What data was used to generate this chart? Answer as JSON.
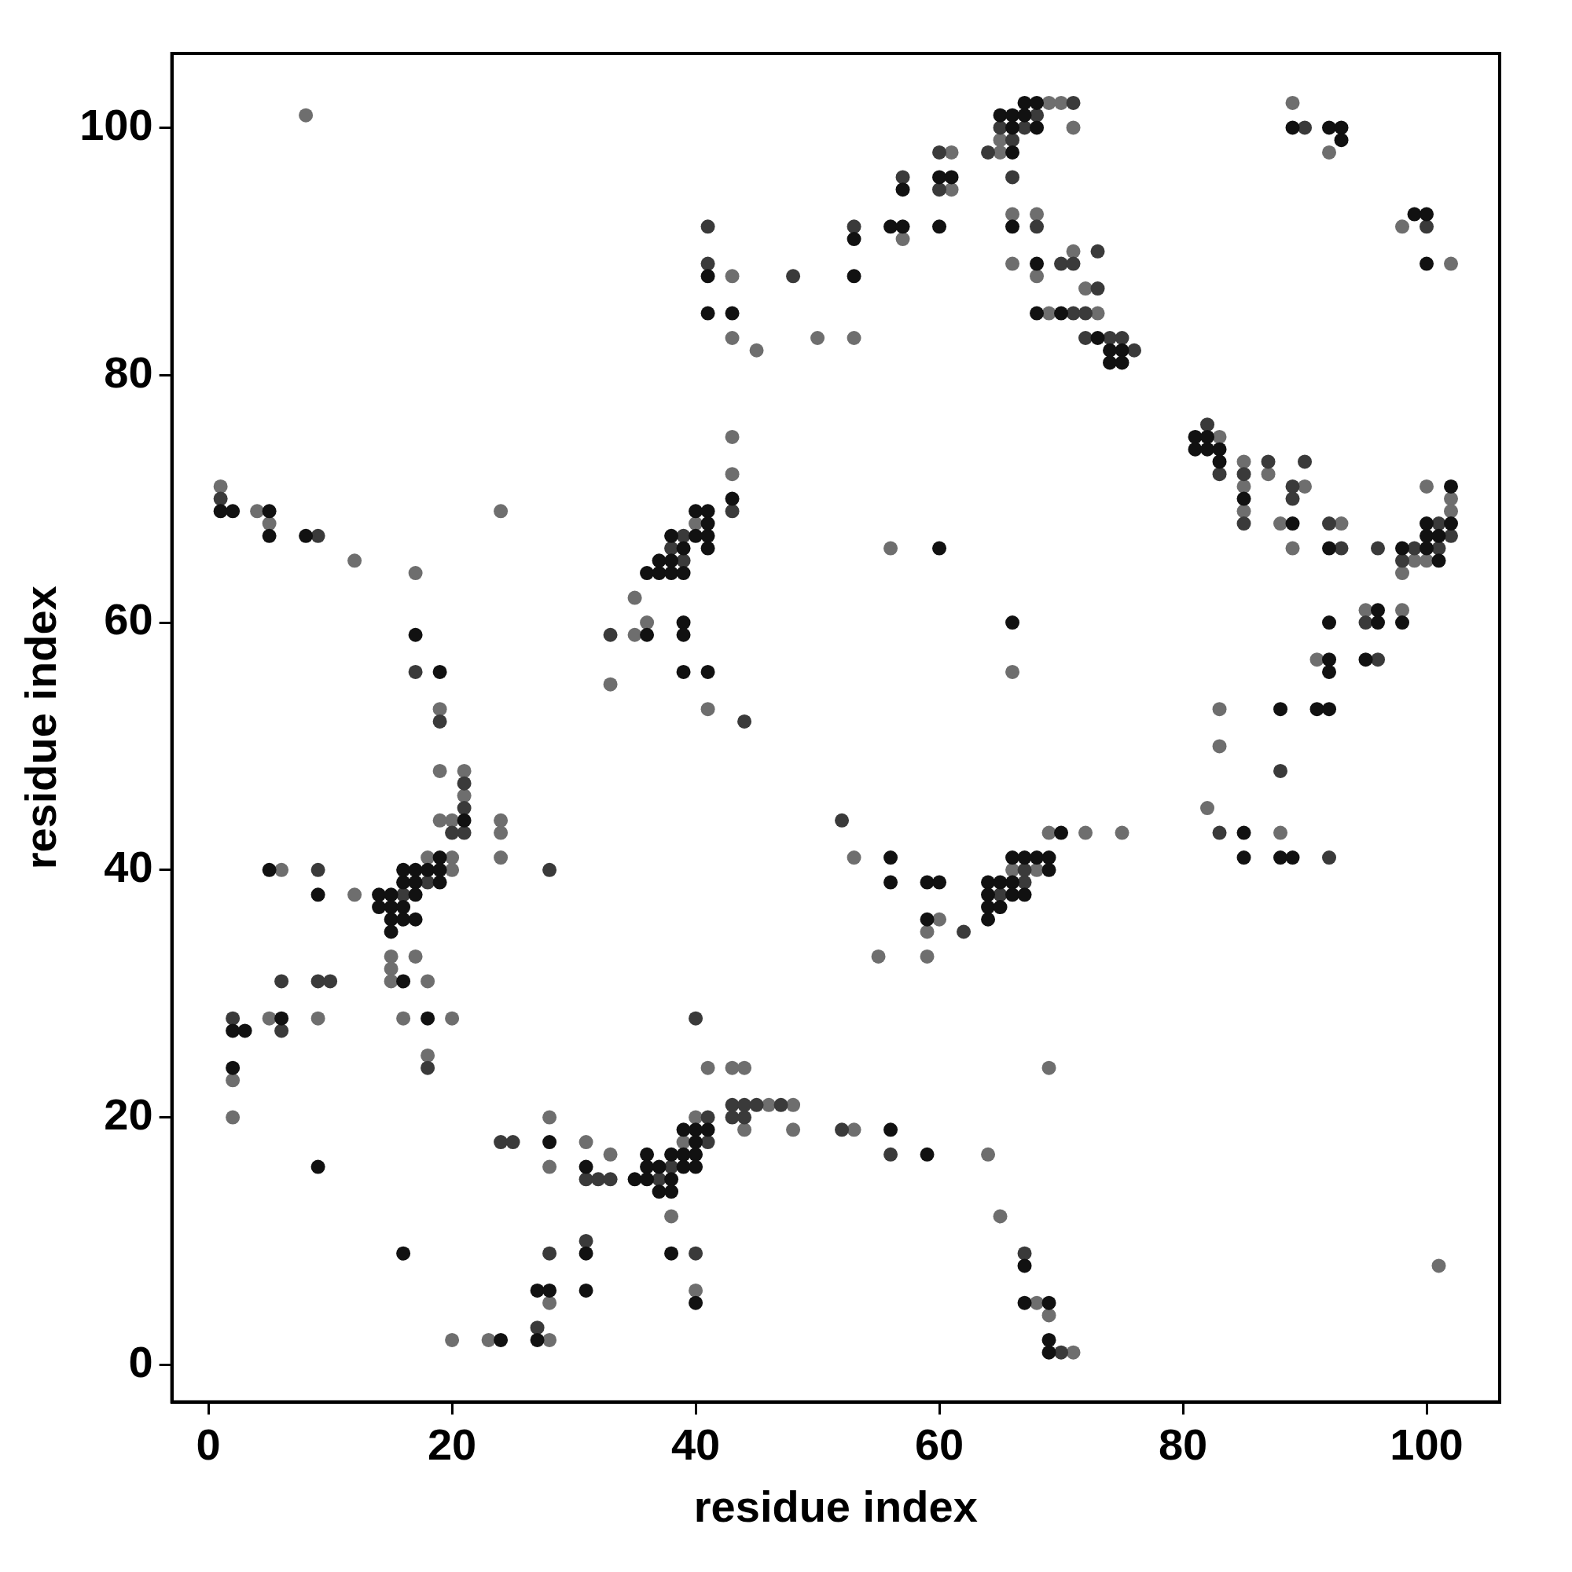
{
  "chart_data": {
    "type": "scatter",
    "xlabel": "residue index",
    "ylabel": "residue index",
    "xlim": [
      -3,
      106
    ],
    "ylim": [
      -3,
      106
    ],
    "xticks": [
      0,
      20,
      40,
      60,
      80,
      100
    ],
    "yticks": [
      0,
      20,
      40,
      60,
      80,
      100
    ],
    "grid": false,
    "legend": false,
    "marker": "circle",
    "series": [
      {
        "color": "#111111",
        "x": [
          1,
          2,
          5,
          5,
          8,
          17,
          19,
          21,
          14,
          14,
          15,
          15,
          15,
          15,
          16,
          16,
          16,
          16,
          17,
          17,
          17,
          17,
          18,
          19,
          19,
          19,
          5,
          9,
          16,
          18,
          6,
          2,
          3,
          2,
          9,
          16,
          24,
          27,
          27,
          28,
          31,
          31,
          28,
          31,
          35,
          36,
          36,
          36,
          37,
          37,
          38,
          38,
          38,
          39,
          39,
          39,
          40,
          40,
          40,
          40,
          41,
          38,
          40,
          56,
          59,
          67,
          67,
          69,
          69,
          69,
          36,
          36,
          37,
          37,
          38,
          38,
          38,
          39,
          39,
          40,
          40,
          41,
          41,
          41,
          41,
          43,
          39,
          39,
          39,
          41,
          41,
          41,
          43,
          53,
          53,
          56,
          57,
          57,
          60,
          60,
          61,
          65,
          66,
          66,
          66,
          67,
          67,
          68,
          68,
          66,
          68,
          68,
          70,
          73,
          74,
          74,
          75,
          75,
          89,
          92,
          93,
          93,
          99,
          100,
          100,
          81,
          81,
          82,
          82,
          83,
          83,
          85,
          89,
          92,
          98,
          100,
          100,
          100,
          101,
          101,
          102,
          102,
          92,
          92,
          92,
          91,
          92,
          95,
          96,
          96,
          98,
          88,
          88,
          89,
          85,
          85,
          56,
          56,
          59,
          60,
          59,
          64,
          64,
          64,
          64,
          65,
          65,
          66,
          66,
          66,
          67,
          67,
          68,
          69,
          69,
          70,
          60,
          66
        ],
        "values": [
          69,
          69,
          69,
          67,
          67,
          59,
          56,
          44,
          38,
          37,
          38,
          37,
          36,
          35,
          39,
          40,
          37,
          36,
          40,
          39,
          38,
          36,
          40,
          41,
          40,
          39,
          40,
          38,
          31,
          28,
          28,
          27,
          27,
          24,
          16,
          9,
          2,
          2,
          6,
          6,
          9,
          6,
          18,
          16,
          15,
          17,
          16,
          15,
          16,
          14,
          17,
          15,
          14,
          19,
          17,
          16,
          19,
          18,
          17,
          16,
          19,
          9,
          5,
          19,
          17,
          8,
          5,
          5,
          2,
          1,
          59,
          64,
          64,
          65,
          64,
          65,
          67,
          64,
          66,
          67,
          69,
          69,
          68,
          67,
          66,
          70,
          60,
          59,
          56,
          56,
          88,
          85,
          85,
          91,
          88,
          92,
          92,
          95,
          92,
          96,
          96,
          101,
          101,
          100,
          98,
          102,
          101,
          102,
          100,
          92,
          89,
          85,
          85,
          83,
          82,
          81,
          82,
          81,
          100,
          100,
          100,
          99,
          93,
          93,
          89,
          75,
          74,
          75,
          74,
          74,
          73,
          70,
          68,
          66,
          66,
          68,
          67,
          66,
          67,
          65,
          71,
          68,
          60,
          57,
          56,
          53,
          53,
          57,
          61,
          60,
          60,
          53,
          41,
          41,
          43,
          41,
          41,
          39,
          39,
          39,
          36,
          39,
          38,
          37,
          36,
          39,
          37,
          41,
          39,
          38,
          41,
          38,
          41,
          41,
          40,
          43,
          66,
          60
        ]
      },
      {
        "color": "#3a3a3a",
        "x": [
          1,
          9,
          17,
          19,
          21,
          21,
          21,
          20,
          28,
          16,
          18,
          9,
          18,
          6,
          9,
          10,
          6,
          2,
          27,
          28,
          31,
          24,
          25,
          31,
          32,
          33,
          37,
          38,
          41,
          41,
          40,
          40,
          43,
          44,
          45,
          47,
          43,
          44,
          52,
          56,
          67,
          70,
          33,
          38,
          39,
          39,
          43,
          44,
          41,
          41,
          48,
          53,
          57,
          60,
          60,
          64,
          65,
          66,
          67,
          68,
          71,
          66,
          68,
          70,
          71,
          71,
          72,
          72,
          73,
          73,
          74,
          75,
          76,
          90,
          100,
          82,
          83,
          85,
          85,
          87,
          89,
          89,
          90,
          92,
          93,
          96,
          98,
          99,
          101,
          101,
          102,
          95,
          96,
          88,
          92,
          83,
          52,
          62,
          65,
          67,
          67
        ],
        "values": [
          70,
          67,
          56,
          52,
          47,
          45,
          43,
          43,
          40,
          38,
          39,
          40,
          24,
          31,
          31,
          31,
          27,
          28,
          3,
          9,
          10,
          18,
          18,
          15,
          15,
          15,
          15,
          16,
          20,
          18,
          9,
          28,
          21,
          21,
          21,
          21,
          20,
          20,
          19,
          17,
          9,
          1,
          59,
          66,
          65,
          67,
          69,
          52,
          92,
          89,
          88,
          92,
          96,
          98,
          95,
          98,
          100,
          99,
          100,
          101,
          102,
          96,
          92,
          89,
          89,
          85,
          85,
          83,
          90,
          87,
          83,
          83,
          82,
          100,
          92,
          76,
          72,
          72,
          68,
          73,
          71,
          70,
          73,
          68,
          66,
          66,
          65,
          66,
          68,
          66,
          67,
          60,
          57,
          48,
          41,
          43,
          44,
          35,
          38,
          40,
          39
        ]
      },
      {
        "color": "#6e6e6e",
        "x": [
          8,
          1,
          4,
          5,
          12,
          17,
          19,
          19,
          21,
          21,
          20,
          19,
          24,
          24,
          24,
          24,
          18,
          20,
          20,
          12,
          6,
          15,
          15,
          15,
          17,
          18,
          16,
          18,
          20,
          5,
          9,
          2,
          2,
          20,
          23,
          28,
          28,
          28,
          28,
          31,
          33,
          39,
          40,
          38,
          40,
          41,
          43,
          44,
          46,
          48,
          44,
          48,
          53,
          64,
          65,
          68,
          69,
          71,
          69,
          101,
          33,
          35,
          35,
          36,
          40,
          43,
          43,
          41,
          43,
          43,
          45,
          50,
          53,
          57,
          61,
          61,
          65,
          65,
          69,
          70,
          71,
          66,
          66,
          68,
          68,
          69,
          71,
          72,
          73,
          89,
          92,
          98,
          102,
          83,
          85,
          85,
          85,
          87,
          88,
          89,
          90,
          93,
          98,
          99,
          100,
          100,
          102,
          102,
          91,
          95,
          98,
          88,
          83,
          83,
          82,
          53,
          66,
          68,
          69,
          72,
          75,
          60,
          59,
          55,
          59,
          56,
          66
        ],
        "values": [
          101,
          71,
          69,
          68,
          65,
          64,
          53,
          48,
          48,
          46,
          44,
          44,
          44,
          43,
          41,
          69,
          41,
          41,
          40,
          38,
          40,
          33,
          32,
          31,
          33,
          31,
          28,
          25,
          28,
          28,
          28,
          23,
          20,
          2,
          2,
          2,
          5,
          20,
          16,
          18,
          17,
          18,
          20,
          12,
          6,
          24,
          24,
          24,
          21,
          21,
          19,
          19,
          19,
          17,
          12,
          5,
          4,
          1,
          24,
          8,
          55,
          62,
          59,
          60,
          68,
          72,
          75,
          53,
          88,
          83,
          82,
          83,
          83,
          91,
          98,
          95,
          98,
          99,
          102,
          102,
          100,
          93,
          89,
          93,
          88,
          85,
          90,
          87,
          85,
          102,
          98,
          92,
          89,
          75,
          73,
          71,
          69,
          72,
          68,
          66,
          71,
          68,
          64,
          65,
          71,
          65,
          70,
          69,
          57,
          61,
          61,
          43,
          53,
          50,
          45,
          41,
          40,
          40,
          43,
          43,
          43,
          36,
          35,
          33,
          33,
          66,
          56
        ]
      }
    ]
  }
}
